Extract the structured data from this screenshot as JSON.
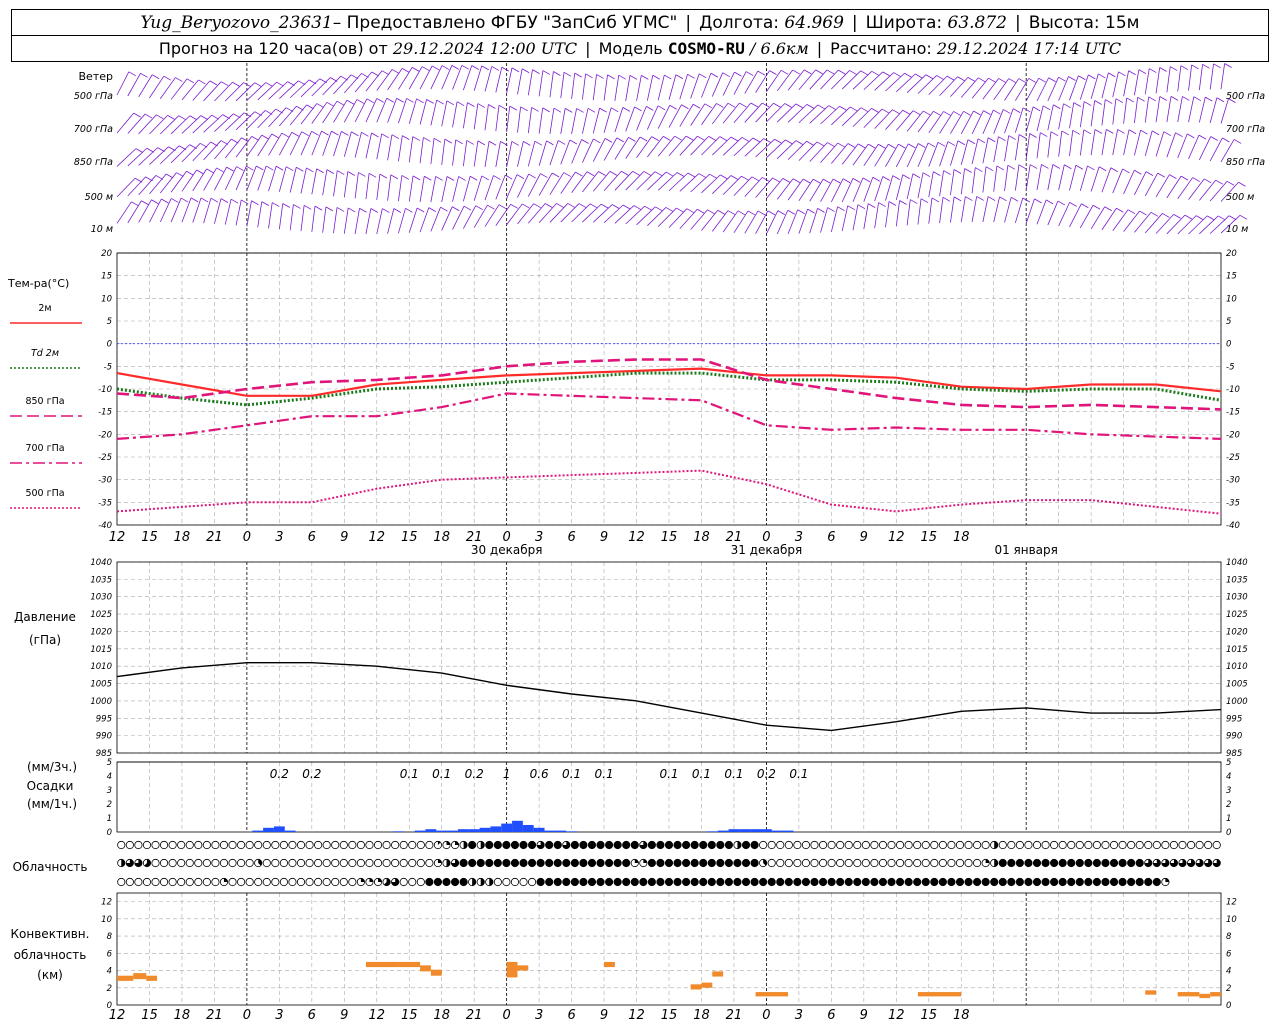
{
  "header": {
    "station": "Yug_Beryozovo_23631",
    "provider": " – Предоставлено ФГБУ \"ЗапСиб УГМС\"",
    "lon_label": "Долгота:",
    "lon_value": "64.969",
    "lat_label": "Широта:",
    "lat_value": "63.872",
    "alt_label": "Высота:",
    "alt_value": "15м",
    "forecast_label": "Прогноз на 120 часа(ов) от",
    "forecast_time": "29.12.2024 12:00 UTC",
    "model_label": "Модель",
    "model_name": "COSMO-RU",
    "model_res": "/ 6.6км",
    "calc_label": "Рассчитано:",
    "calc_time": "29.12.2024 17:14 UTC"
  },
  "chart_data": [
    {
      "id": "wind",
      "type": "barbs",
      "title": "Ветер",
      "levels": [
        "500 гПа",
        "700 гПа",
        "850 гПа",
        "500 м",
        "10 м"
      ]
    },
    {
      "id": "temperature",
      "type": "line",
      "title": "Тем-ра(°C)",
      "ylim": [
        -40,
        20
      ],
      "yticks": [
        20,
        15,
        10,
        5,
        0,
        -5,
        -10,
        -15,
        -20,
        -25,
        -30,
        -35,
        -40
      ],
      "x_hours": [
        0,
        6,
        12,
        18,
        24,
        30,
        36,
        42,
        48,
        54,
        60,
        66,
        72,
        78,
        84,
        90,
        96,
        102
      ],
      "series": [
        {
          "name": "2м",
          "color": "#ff2a2a",
          "style": "solid",
          "values": [
            -6.5,
            -9,
            -11.5,
            -11.5,
            -9,
            -8,
            -7,
            -6.5,
            -6,
            -5.5,
            -7,
            -7,
            -7.5,
            -9.5,
            -10,
            -9,
            -9,
            -10.5
          ]
        },
        {
          "name": "Td 2м",
          "color": "#1a7a1a",
          "style": "dotted",
          "values": [
            -10,
            -12,
            -13.5,
            -12,
            -10,
            -9.5,
            -8.5,
            -7.5,
            -6.5,
            -6.5,
            -8,
            -8,
            -8.5,
            -10,
            -10.5,
            -10,
            -10,
            -12.5
          ]
        },
        {
          "name": "850 гПа",
          "color": "#e0147a",
          "style": "dashed",
          "values": [
            -11,
            -12,
            -10,
            -8.5,
            -8,
            -7,
            -5,
            -4,
            -3.5,
            -3.5,
            -8,
            -10,
            -12,
            -13.5,
            -14,
            -13.5,
            -14,
            -14.5
          ]
        },
        {
          "name": "700 гПа",
          "color": "#e0147a",
          "style": "dashdot",
          "values": [
            -21,
            -20,
            -18,
            -16,
            -16,
            -14,
            -11,
            -11.5,
            -12,
            -12.5,
            -18,
            -19,
            -18.5,
            -19,
            -19,
            -20,
            -20.5,
            -21
          ]
        },
        {
          "name": "500 гПа",
          "color": "#e0147a",
          "style": "dotted",
          "values": [
            -37,
            -36,
            -35,
            -35,
            -32,
            -30,
            -29.5,
            -29,
            -28.5,
            -28,
            -31,
            -35.5,
            -37,
            -35.5,
            -34.5,
            -34.5,
            -36,
            -37.5
          ]
        }
      ]
    },
    {
      "id": "pressure",
      "type": "line",
      "title": "Давление",
      "ylabel": "(гПа)",
      "ylim": [
        985,
        1040
      ],
      "yticks": [
        1040,
        1035,
        1030,
        1025,
        1020,
        1015,
        1010,
        1005,
        1000,
        995,
        990,
        985
      ],
      "x_hours": [
        0,
        6,
        12,
        18,
        24,
        30,
        36,
        42,
        48,
        54,
        60,
        66,
        72,
        78,
        84,
        90,
        96,
        102
      ],
      "values": [
        1007,
        1009.5,
        1011,
        1011,
        1010,
        1008,
        1004.5,
        1002,
        1000,
        996.5,
        993,
        991.5,
        994,
        997,
        998,
        996.5,
        996.5,
        997.5
      ],
      "series": [
        {
          "name": "Давление",
          "color": "#000000"
        }
      ]
    },
    {
      "id": "precip",
      "type": "bar",
      "title": "Осадки",
      "ylabels": [
        "(мм/3ч.)",
        "(мм/1ч.)"
      ],
      "ylim": [
        0,
        5
      ],
      "yticks": [
        5,
        4,
        3,
        2,
        1,
        0
      ],
      "sums": [
        {
          "hour": 15,
          "label": "0.2"
        },
        {
          "hour": 18,
          "label": "0.2"
        },
        {
          "hour": 27,
          "label": "0.1"
        },
        {
          "hour": 30,
          "label": "0.1"
        },
        {
          "hour": 33,
          "label": "0.2"
        },
        {
          "hour": 36,
          "label": "1"
        },
        {
          "hour": 39,
          "label": "0.6"
        },
        {
          "hour": 42,
          "label": "0.1"
        },
        {
          "hour": 45,
          "label": "0.1"
        },
        {
          "hour": 51,
          "label": "0.1"
        },
        {
          "hour": 54,
          "label": "0.1"
        },
        {
          "hour": 57,
          "label": "0.1"
        },
        {
          "hour": 60,
          "label": "0.2"
        },
        {
          "hour": 63,
          "label": "0.1"
        }
      ],
      "bars": [
        {
          "hour": 13,
          "value": 0.1
        },
        {
          "hour": 14,
          "value": 0.3
        },
        {
          "hour": 15,
          "value": 0.4
        },
        {
          "hour": 16,
          "value": 0.1
        },
        {
          "hour": 26,
          "value": 0.05
        },
        {
          "hour": 28,
          "value": 0.1
        },
        {
          "hour": 29,
          "value": 0.2
        },
        {
          "hour": 30,
          "value": 0.1
        },
        {
          "hour": 31,
          "value": 0.1
        },
        {
          "hour": 32,
          "value": 0.2
        },
        {
          "hour": 33,
          "value": 0.2
        },
        {
          "hour": 34,
          "value": 0.3
        },
        {
          "hour": 35,
          "value": 0.4
        },
        {
          "hour": 36,
          "value": 0.6
        },
        {
          "hour": 37,
          "value": 0.8
        },
        {
          "hour": 38,
          "value": 0.5
        },
        {
          "hour": 39,
          "value": 0.3
        },
        {
          "hour": 40,
          "value": 0.1
        },
        {
          "hour": 41,
          "value": 0.1
        },
        {
          "hour": 42,
          "value": 0.05
        },
        {
          "hour": 55,
          "value": 0.05
        },
        {
          "hour": 56,
          "value": 0.1
        },
        {
          "hour": 57,
          "value": 0.2
        },
        {
          "hour": 58,
          "value": 0.2
        },
        {
          "hour": 59,
          "value": 0.2
        },
        {
          "hour": 60,
          "value": 0.2
        },
        {
          "hour": 61,
          "value": 0.1
        },
        {
          "hour": 62,
          "value": 0.1
        }
      ],
      "series": [
        {
          "name": "Осадки",
          "color": "#1f4fff"
        }
      ]
    },
    {
      "id": "cloud",
      "type": "symbols",
      "title": "Облачность",
      "rows": [
        [
          0,
          0,
          0,
          0,
          0,
          0,
          0,
          0,
          0,
          0,
          0,
          0,
          0,
          0,
          0,
          0,
          0,
          0,
          0,
          0,
          0,
          0,
          0,
          0,
          0,
          0,
          0,
          0,
          0,
          0,
          0,
          0,
          0,
          0,
          0,
          0,
          0,
          1,
          2,
          2,
          4,
          8,
          4,
          8,
          8,
          8,
          8,
          8,
          8,
          6,
          8,
          8,
          6,
          8,
          8,
          8,
          8,
          8,
          8,
          8,
          8,
          6,
          8,
          8,
          8,
          8,
          8,
          8,
          8,
          8,
          8,
          8,
          4,
          8,
          8,
          0,
          0,
          0,
          0,
          0,
          0,
          0,
          0,
          0,
          0,
          0,
          0,
          0,
          0,
          0,
          0,
          0,
          0,
          0,
          0,
          0,
          0,
          0,
          0,
          0,
          0,
          0,
          4,
          0,
          0,
          0,
          0,
          0,
          0,
          0,
          0,
          0,
          0,
          0,
          0,
          0,
          0,
          0,
          0,
          0,
          0,
          0,
          0,
          0,
          0,
          0,
          0,
          0,
          0
        ],
        [
          4,
          6,
          6,
          5,
          0,
          0,
          0,
          0,
          0,
          0,
          0,
          0,
          0,
          0,
          0,
          0,
          3,
          0,
          0,
          0,
          0,
          0,
          0,
          0,
          0,
          0,
          0,
          0,
          0,
          0,
          0,
          0,
          0,
          0,
          0,
          0,
          0,
          2,
          4,
          6,
          8,
          8,
          8,
          8,
          8,
          8,
          8,
          8,
          8,
          8,
          8,
          8,
          8,
          8,
          8,
          8,
          8,
          8,
          8,
          8,
          2,
          2,
          8,
          8,
          8,
          8,
          8,
          8,
          8,
          8,
          8,
          8,
          8,
          8,
          8,
          3,
          0,
          0,
          0,
          0,
          0,
          0,
          0,
          0,
          0,
          0,
          0,
          0,
          0,
          0,
          0,
          0,
          0,
          0,
          0,
          0,
          0,
          0,
          0,
          0,
          0,
          2,
          4,
          8,
          8,
          8,
          8,
          8,
          8,
          8,
          8,
          8,
          8,
          8,
          8,
          8,
          8,
          8,
          8,
          8,
          6,
          6,
          6,
          6,
          6,
          6,
          6,
          6,
          6
        ],
        [
          0,
          0,
          0,
          0,
          0,
          0,
          0,
          0,
          0,
          0,
          0,
          0,
          2,
          0,
          0,
          0,
          0,
          0,
          0,
          0,
          0,
          0,
          0,
          0,
          0,
          0,
          0,
          0,
          2,
          2,
          2,
          5,
          6,
          0,
          0,
          0,
          8,
          8,
          8,
          8,
          8,
          4,
          4,
          4,
          0,
          0,
          0,
          0,
          0,
          8,
          8,
          8,
          8,
          8,
          8,
          8,
          8,
          8,
          8,
          8,
          8,
          8,
          8,
          8,
          8,
          8,
          8,
          8,
          8,
          8,
          8,
          8,
          8,
          8,
          8,
          8,
          8,
          8,
          8,
          8,
          8,
          8,
          8,
          8,
          8,
          8,
          8,
          8,
          8,
          8,
          8,
          8,
          8,
          8,
          8,
          8,
          8,
          8,
          8,
          8,
          8,
          8,
          8,
          8,
          8,
          8,
          8,
          8,
          8,
          8,
          8,
          8,
          8,
          8,
          8,
          8,
          8,
          8,
          8,
          8,
          8,
          8,
          2
        ]
      ]
    },
    {
      "id": "convective",
      "type": "bar",
      "title": "Конвективн. облачность",
      "ylabel": "(км)",
      "ylim": [
        0,
        13
      ],
      "yticks": [
        12,
        10,
        8,
        6,
        4,
        2,
        0
      ],
      "segments": [
        {
          "h0": 0,
          "h1": 1.5,
          "base": 2.8,
          "top": 3.4
        },
        {
          "h0": 1.5,
          "h1": 2.7,
          "base": 3.0,
          "top": 3.7
        },
        {
          "h0": 2.7,
          "h1": 3.7,
          "base": 2.8,
          "top": 3.4
        },
        {
          "h0": 23,
          "h1": 26,
          "base": 4.4,
          "top": 5.0
        },
        {
          "h0": 26,
          "h1": 28,
          "base": 4.4,
          "top": 5.0
        },
        {
          "h0": 28,
          "h1": 29,
          "base": 3.9,
          "top": 4.6
        },
        {
          "h0": 29,
          "h1": 30,
          "base": 3.4,
          "top": 4.1
        },
        {
          "h0": 36,
          "h1": 37,
          "base": 3.2,
          "top": 5.0
        },
        {
          "h0": 37,
          "h1": 38,
          "base": 4.0,
          "top": 4.6
        },
        {
          "h0": 45,
          "h1": 46,
          "base": 4.4,
          "top": 5.0
        },
        {
          "h0": 53,
          "h1": 54,
          "base": 1.8,
          "top": 2.4
        },
        {
          "h0": 54,
          "h1": 55,
          "base": 2.0,
          "top": 2.6
        },
        {
          "h0": 55,
          "h1": 56,
          "base": 3.3,
          "top": 3.9
        },
        {
          "h0": 59,
          "h1": 62,
          "base": 1.0,
          "top": 1.5
        },
        {
          "h0": 74,
          "h1": 78,
          "base": 1.0,
          "top": 1.5
        },
        {
          "h0": 95,
          "h1": 96,
          "base": 1.2,
          "top": 1.7
        },
        {
          "h0": 98,
          "h1": 100,
          "base": 1.0,
          "top": 1.5
        },
        {
          "h0": 100,
          "h1": 101,
          "base": 0.8,
          "top": 1.3
        },
        {
          "h0": 101,
          "h1": 102,
          "base": 1.0,
          "top": 1.5
        }
      ],
      "series": [
        {
          "name": "Конвективн. облачность",
          "color": "#f08a2a"
        }
      ]
    }
  ],
  "xaxis": {
    "hour_labels": [
      "12",
      "15",
      "18",
      "21",
      "0",
      "3",
      "6",
      "9",
      "12",
      "15",
      "18",
      "21",
      "0",
      "3",
      "6",
      "9",
      "12",
      "15",
      "18",
      "21",
      "0",
      "3",
      "6",
      "9",
      "12",
      "15",
      "18"
    ],
    "day_labels": [
      "30 декабря",
      "31 декабря",
      "01 января"
    ]
  }
}
